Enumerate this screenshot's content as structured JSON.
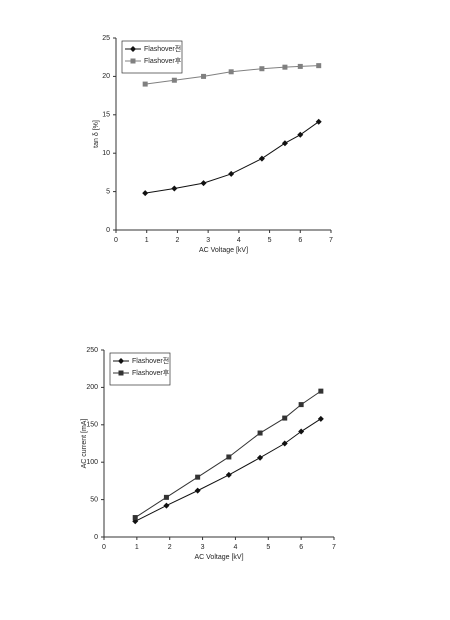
{
  "chart_data": [
    {
      "type": "line",
      "xlabel": "AC Voltage [kV]",
      "ylabel": "tan δ [%]",
      "x": [
        0.95,
        1.9,
        2.85,
        3.75,
        4.75,
        5.5,
        6.0,
        6.6
      ],
      "series": [
        {
          "name": "Flashover전",
          "color": "#111111",
          "marker": "diamond",
          "values": [
            4.8,
            5.4,
            6.1,
            7.3,
            9.3,
            11.3,
            12.4,
            14.1
          ]
        },
        {
          "name": "Flashover후",
          "color": "#808080",
          "marker": "square",
          "values": [
            19.0,
            19.5,
            20.0,
            20.6,
            21.0,
            21.2,
            21.3,
            21.4
          ]
        }
      ],
      "xlim": [
        0,
        7
      ],
      "xticks": [
        0,
        1,
        2,
        3,
        4,
        5,
        6,
        7
      ],
      "ylim": [
        0,
        25
      ],
      "yticks": [
        0,
        5,
        10,
        15,
        20,
        25
      ],
      "legend": "top-left"
    },
    {
      "type": "line",
      "xlabel": "AC Voltage [kV]",
      "ylabel": "AC current [mA]",
      "x": [
        0.95,
        1.9,
        2.85,
        3.8,
        4.75,
        5.5,
        6.0,
        6.6
      ],
      "series": [
        {
          "name": "Flashover전",
          "color": "#111111",
          "marker": "diamond",
          "values": [
            21,
            42,
            62,
            83,
            106,
            125,
            141,
            158
          ]
        },
        {
          "name": "Flashover후",
          "color": "#333333",
          "marker": "square",
          "values": [
            26,
            53,
            80,
            107,
            139,
            159,
            177,
            195
          ]
        }
      ],
      "xlim": [
        0,
        7
      ],
      "xticks": [
        0,
        1,
        2,
        3,
        4,
        5,
        6,
        7
      ],
      "ylim": [
        0,
        250
      ],
      "yticks": [
        0,
        50,
        100,
        150,
        200,
        250
      ],
      "legend": "top-left"
    }
  ]
}
